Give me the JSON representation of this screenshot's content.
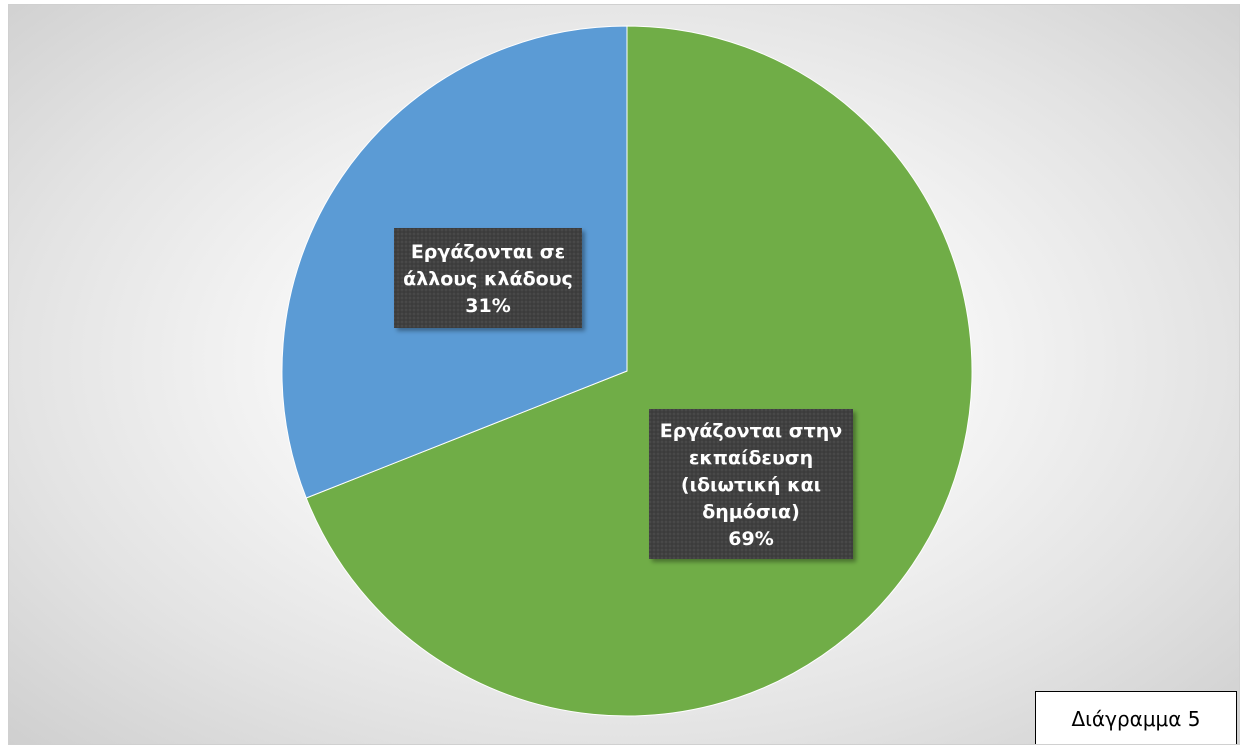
{
  "chart_data": {
    "type": "pie",
    "categories": [
      "Εργάζονται στην εκπαίδευση (ιδιωτική και δημόσια)",
      "Εργάζονται σε άλλους κλάδους"
    ],
    "values": [
      69,
      31
    ],
    "unit": "%",
    "colors": [
      "#70ad47",
      "#5b9bd5"
    ],
    "data_labels": [
      {
        "lines": [
          "Εργάζονται στην",
          "εκπαίδευση",
          "(ιδιωτική και",
          "δημόσια)",
          "69%"
        ]
      },
      {
        "lines": [
          "Εργάζονται σε",
          "άλλους κλάδους",
          "31%"
        ]
      }
    ],
    "label_style": {
      "background": "#404040",
      "text_color": "#ffffff"
    },
    "legend": "none"
  },
  "caption": "Διάγραμμα 5"
}
